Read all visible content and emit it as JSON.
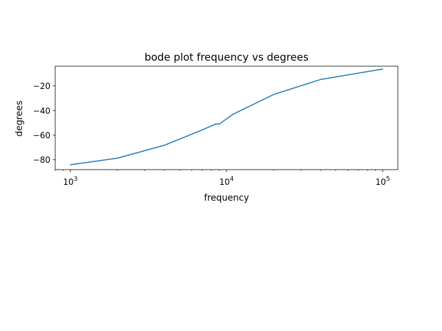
{
  "chart_data": {
    "type": "line",
    "title": "bode plot frequency vs degrees",
    "xlabel": "frequency",
    "ylabel": "degrees",
    "xscale": "log",
    "xlim": [
      800,
      125000
    ],
    "ylim": [
      -88,
      -4
    ],
    "grid": false,
    "x_ticks": [
      {
        "value": 1000,
        "base": "10",
        "exp": "3"
      },
      {
        "value": 10000,
        "base": "10",
        "exp": "4"
      },
      {
        "value": 100000,
        "base": "10",
        "exp": "5"
      }
    ],
    "y_ticks": [
      {
        "value": -80,
        "label": "−80"
      },
      {
        "value": -60,
        "label": "−60"
      },
      {
        "value": -40,
        "label": "−40"
      },
      {
        "value": -20,
        "label": "−20"
      }
    ],
    "series": [
      {
        "color": "#1f77b4",
        "x": [
          1000,
          2000,
          4000,
          7000,
          8500,
          9000,
          11000,
          20000,
          40000,
          100000
        ],
        "y": [
          -84,
          -78.7,
          -68.2,
          -55.7,
          -51,
          -51,
          -43,
          -27,
          -14.8,
          -6.3
        ]
      }
    ]
  }
}
